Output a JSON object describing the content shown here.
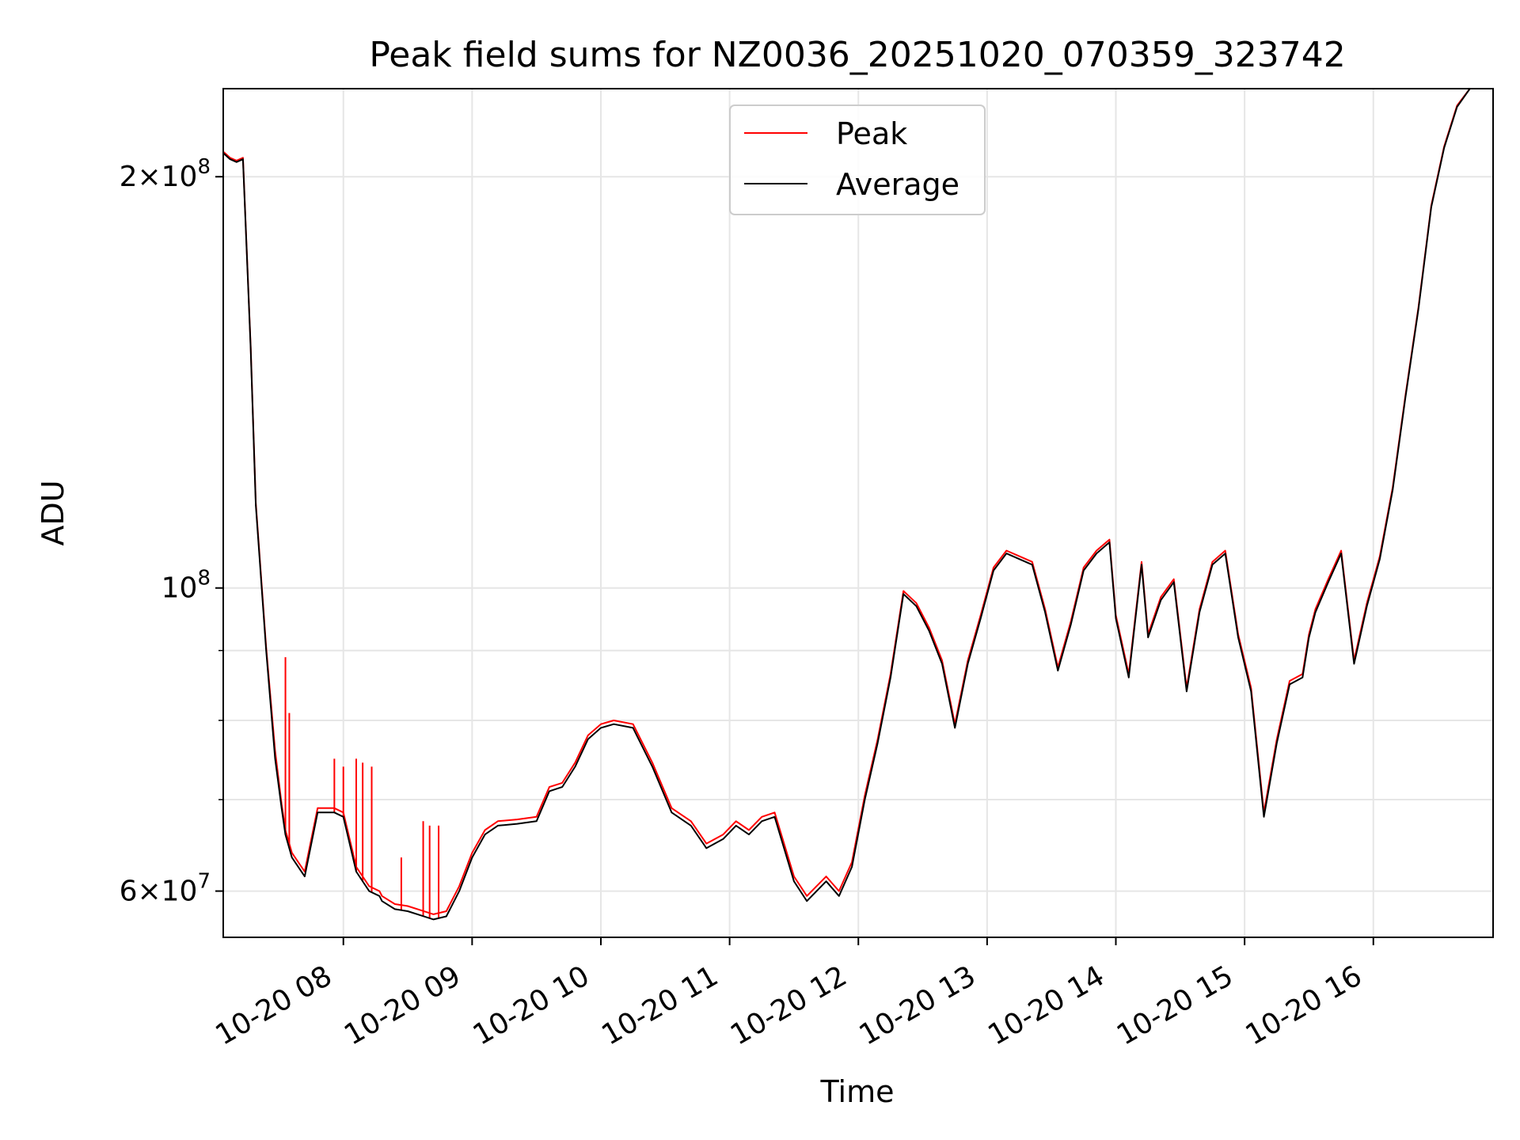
{
  "chart_data": {
    "type": "line",
    "title": "Peak field sums for NZ0036_20251020_070359_323742",
    "xlabel": "Time",
    "ylabel": "ADU",
    "yscale": "log",
    "grid": true,
    "xlim_hours": [
      7.067,
      16.93
    ],
    "ylim": [
      55500000,
      232000000
    ],
    "x_ticks": [
      {
        "hour": 8,
        "label": "10-20 08"
      },
      {
        "hour": 9,
        "label": "10-20 09"
      },
      {
        "hour": 10,
        "label": "10-20 10"
      },
      {
        "hour": 11,
        "label": "10-20 11"
      },
      {
        "hour": 12,
        "label": "10-20 12"
      },
      {
        "hour": 13,
        "label": "10-20 13"
      },
      {
        "hour": 14,
        "label": "10-20 14"
      },
      {
        "hour": 15,
        "label": "10-20 15"
      },
      {
        "hour": 16,
        "label": "10-20 16"
      }
    ],
    "y_ticks": [
      {
        "value": 60000000,
        "mantissa": "6",
        "exponent": "7"
      },
      {
        "value": 100000000,
        "mantissa": "",
        "exponent": "8"
      },
      {
        "value": 200000000,
        "mantissa": "2",
        "exponent": "8"
      }
    ],
    "y_minor_ticks": [
      70000000,
      80000000,
      90000000
    ],
    "legend": {
      "position": "top-center",
      "entries": [
        {
          "label": "Peak",
          "color": "#ff0000"
        },
        {
          "label": "Average",
          "color": "#000000"
        }
      ]
    },
    "series": [
      {
        "name": "Average",
        "color": "#000000",
        "x_hours": [
          7.07,
          7.12,
          7.17,
          7.22,
          7.28,
          7.32,
          7.4,
          7.47,
          7.52,
          7.55,
          7.6,
          7.7,
          7.8,
          7.88,
          7.93,
          8.0,
          8.1,
          8.2,
          8.28,
          8.3,
          8.4,
          8.5,
          8.6,
          8.7,
          8.8,
          8.9,
          9.0,
          9.1,
          9.2,
          9.35,
          9.5,
          9.6,
          9.7,
          9.8,
          9.9,
          10.0,
          10.1,
          10.25,
          10.4,
          10.55,
          10.7,
          10.82,
          10.95,
          11.05,
          11.15,
          11.25,
          11.35,
          11.5,
          11.6,
          11.75,
          11.85,
          11.95,
          12.05,
          12.15,
          12.25,
          12.35,
          12.45,
          12.55,
          12.65,
          12.75,
          12.85,
          12.95,
          13.05,
          13.15,
          13.25,
          13.35,
          13.45,
          13.55,
          13.65,
          13.75,
          13.85,
          13.95,
          14.0,
          14.1,
          14.2,
          14.25,
          14.35,
          14.45,
          14.55,
          14.65,
          14.75,
          14.85,
          14.95,
          15.05,
          15.15,
          15.25,
          15.35,
          15.45,
          15.5,
          15.55,
          15.65,
          15.75,
          15.85,
          15.95,
          16.05,
          16.15,
          16.25,
          16.35,
          16.45,
          16.55,
          16.65,
          16.75,
          16.85,
          16.93
        ],
        "values": [
          208000000,
          206000000,
          205000000,
          206000000,
          150000000,
          115000000,
          90000000,
          75000000,
          69000000,
          66000000,
          63500000,
          61500000,
          68500000,
          68500000,
          68500000,
          68000000,
          62000000,
          60000000,
          59500000,
          59000000,
          58200000,
          58000000,
          57600000,
          57200000,
          57500000,
          60000000,
          63500000,
          66000000,
          67000000,
          67200000,
          67500000,
          71000000,
          71500000,
          74000000,
          77500000,
          79000000,
          79500000,
          79000000,
          74000000,
          68500000,
          67000000,
          64500000,
          65500000,
          67000000,
          66000000,
          67500000,
          68000000,
          61000000,
          59000000,
          61000000,
          59500000,
          62500000,
          70000000,
          77000000,
          86000000,
          99000000,
          97000000,
          93000000,
          88000000,
          79000000,
          88000000,
          95000000,
          103000000,
          106000000,
          105000000,
          104000000,
          96000000,
          87000000,
          94000000,
          103000000,
          106000000,
          108000000,
          95000000,
          86000000,
          104000000,
          92000000,
          98000000,
          101000000,
          84000000,
          96000000,
          104000000,
          106000000,
          92000000,
          84000000,
          68000000,
          77000000,
          85000000,
          86000000,
          92000000,
          96000000,
          101000000,
          106000000,
          88000000,
          97000000,
          105000000,
          118000000,
          138000000,
          160000000,
          190000000,
          210000000,
          225000000,
          232000000,
          232000000,
          232000000
        ]
      },
      {
        "name": "Peak",
        "color": "#ff0000",
        "x_hours": [
          7.07,
          7.12,
          7.17,
          7.22,
          7.28,
          7.32,
          7.4,
          7.47,
          7.52,
          7.55,
          7.6,
          7.7,
          7.8,
          7.88,
          7.93,
          8.0,
          8.1,
          8.2,
          8.28,
          8.3,
          8.4,
          8.5,
          8.6,
          8.7,
          8.8,
          8.9,
          9.0,
          9.1,
          9.2,
          9.35,
          9.5,
          9.6,
          9.7,
          9.8,
          9.9,
          10.0,
          10.1,
          10.25,
          10.4,
          10.55,
          10.7,
          10.82,
          10.95,
          11.05,
          11.15,
          11.25,
          11.35,
          11.5,
          11.6,
          11.75,
          11.85,
          11.95,
          12.05,
          12.15,
          12.25,
          12.35,
          12.45,
          12.55,
          12.65,
          12.75,
          12.85,
          12.95,
          13.05,
          13.15,
          13.25,
          13.35,
          13.45,
          13.55,
          13.65,
          13.75,
          13.85,
          13.95,
          14.0,
          14.1,
          14.2,
          14.25,
          14.35,
          14.45,
          14.55,
          14.65,
          14.75,
          14.85,
          14.95,
          15.05,
          15.15,
          15.25,
          15.35,
          15.45,
          15.5,
          15.55,
          15.65,
          15.75,
          15.85,
          15.95,
          16.05,
          16.15,
          16.25,
          16.35,
          16.45,
          16.55,
          16.65,
          16.75,
          16.85,
          16.93
        ],
        "values": [
          208500000,
          206500000,
          205500000,
          206500000,
          150500000,
          115500000,
          90500000,
          76000000,
          69500000,
          66500000,
          64000000,
          62000000,
          69000000,
          69000000,
          69000000,
          68500000,
          62500000,
          60500000,
          60000000,
          59500000,
          58700000,
          58500000,
          58100000,
          57700000,
          58000000,
          60500000,
          64000000,
          66500000,
          67500000,
          67700000,
          68000000,
          71500000,
          72000000,
          74500000,
          78000000,
          79500000,
          80000000,
          79500000,
          74500000,
          69000000,
          67500000,
          65000000,
          66000000,
          67500000,
          66500000,
          68000000,
          68500000,
          61500000,
          59500000,
          61500000,
          60000000,
          63000000,
          70500000,
          77500000,
          86500000,
          99500000,
          97500000,
          93500000,
          88500000,
          79500000,
          88500000,
          95500000,
          103500000,
          106500000,
          105500000,
          104500000,
          96500000,
          87500000,
          94500000,
          103500000,
          106500000,
          108500000,
          95500000,
          86500000,
          104500000,
          92500000,
          98500000,
          101500000,
          84500000,
          96500000,
          104500000,
          106500000,
          92500000,
          84500000,
          68500000,
          77500000,
          85500000,
          86500000,
          92500000,
          96500000,
          101500000,
          106500000,
          88500000,
          97500000,
          105500000,
          118500000,
          138500000,
          160500000,
          190500000,
          210500000,
          225500000,
          232000000,
          232000000,
          232000000
        ]
      }
    ],
    "peak_spikes": [
      {
        "hour": 7.55,
        "value": 89000000
      },
      {
        "hour": 7.58,
        "value": 81000000
      },
      {
        "hour": 7.93,
        "value": 75000000
      },
      {
        "hour": 8.0,
        "value": 74000000
      },
      {
        "hour": 8.1,
        "value": 75000000
      },
      {
        "hour": 8.15,
        "value": 74500000
      },
      {
        "hour": 8.22,
        "value": 74000000
      },
      {
        "hour": 8.45,
        "value": 63500000
      },
      {
        "hour": 8.62,
        "value": 67500000
      },
      {
        "hour": 8.67,
        "value": 67000000
      },
      {
        "hour": 8.74,
        "value": 67000000
      }
    ]
  }
}
